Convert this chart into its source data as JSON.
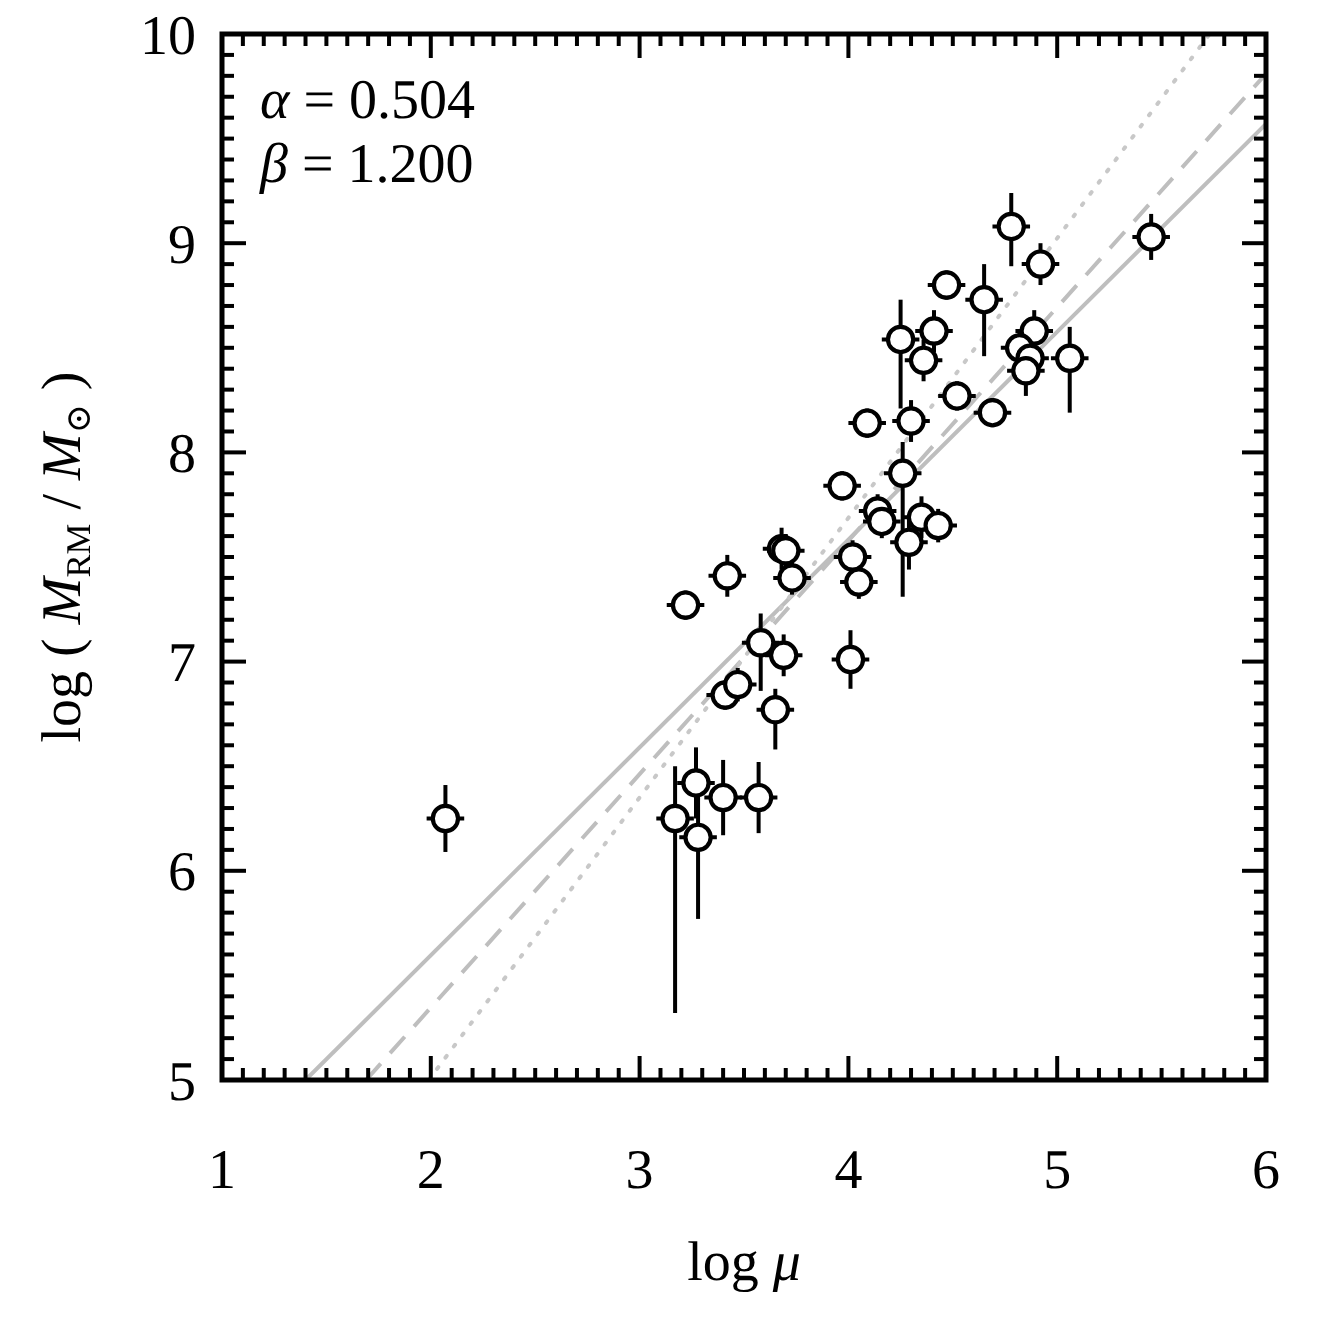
{
  "chart_data": {
    "type": "scatter",
    "xlabel": "log μ",
    "ylabel": "log ( M$_{RM}$ / M$_{⊙}$ )",
    "annotations": [
      "α = 0.504",
      "β = 1.200"
    ],
    "xlim": [
      1,
      6
    ],
    "ylim": [
      5,
      10
    ],
    "xticks": [
      1,
      {
        "value": 1.1,
        "label": null
      },
      {
        "value": 1.2,
        "label": null
      },
      {
        "value": 1.3,
        "label": null
      },
      {
        "value": 1.4,
        "label": null
      },
      {
        "value": 1.5,
        "label": null
      },
      {
        "value": 1.6,
        "label": null
      },
      {
        "value": 1.7,
        "label": null
      },
      {
        "value": 1.8,
        "label": null
      },
      {
        "value": 1.9,
        "label": null
      },
      2,
      {
        "value": 2.1,
        "label": null
      },
      {
        "value": 2.2,
        "label": null
      },
      {
        "value": 2.3,
        "label": null
      },
      {
        "value": 2.4,
        "label": null
      },
      {
        "value": 2.5,
        "label": null
      },
      {
        "value": 2.6,
        "label": null
      },
      {
        "value": 2.7,
        "label": null
      },
      {
        "value": 2.8,
        "label": null
      },
      {
        "value": 2.9,
        "label": null
      },
      3,
      {
        "value": 3.1,
        "label": null
      },
      {
        "value": 3.2,
        "label": null
      },
      {
        "value": 3.3,
        "label": null
      },
      {
        "value": 3.4,
        "label": null
      },
      {
        "value": 3.5,
        "label": null
      },
      {
        "value": 3.6,
        "label": null
      },
      {
        "value": 3.7,
        "label": null
      },
      {
        "value": 3.8,
        "label": null
      },
      {
        "value": 3.9,
        "label": null
      },
      4,
      {
        "value": 4.1,
        "label": null
      },
      {
        "value": 4.2,
        "label": null
      },
      {
        "value": 4.3,
        "label": null
      },
      {
        "value": 4.4,
        "label": null
      },
      {
        "value": 4.5,
        "label": null
      },
      {
        "value": 4.6,
        "label": null
      },
      {
        "value": 4.7,
        "label": null
      },
      {
        "value": 4.8,
        "label": null
      },
      {
        "value": 4.9,
        "label": null
      },
      5,
      {
        "value": 5.1,
        "label": null
      },
      {
        "value": 5.2,
        "label": null
      },
      {
        "value": 5.3,
        "label": null
      },
      {
        "value": 5.4,
        "label": null
      },
      {
        "value": 5.5,
        "label": null
      },
      {
        "value": 5.6,
        "label": null
      },
      {
        "value": 5.7,
        "label": null
      },
      {
        "value": 5.8,
        "label": null
      },
      {
        "value": 5.9,
        "label": null
      },
      6
    ],
    "yticks": [
      5,
      {
        "value": 5.1,
        "label": null
      },
      {
        "value": 5.2,
        "label": null
      },
      {
        "value": 5.3,
        "label": null
      },
      {
        "value": 5.4,
        "label": null
      },
      {
        "value": 5.5,
        "label": null
      },
      {
        "value": 5.6,
        "label": null
      },
      {
        "value": 5.7,
        "label": null
      },
      {
        "value": 5.8,
        "label": null
      },
      {
        "value": 5.9,
        "label": null
      },
      6,
      {
        "value": 6.1,
        "label": null
      },
      {
        "value": 6.2,
        "label": null
      },
      {
        "value": 6.3,
        "label": null
      },
      {
        "value": 6.4,
        "label": null
      },
      {
        "value": 6.5,
        "label": null
      },
      {
        "value": 6.6,
        "label": null
      },
      {
        "value": 6.7,
        "label": null
      },
      {
        "value": 6.8,
        "label": null
      },
      {
        "value": 6.9,
        "label": null
      },
      7,
      {
        "value": 7.1,
        "label": null
      },
      {
        "value": 7.2,
        "label": null
      },
      {
        "value": 7.3,
        "label": null
      },
      {
        "value": 7.4,
        "label": null
      },
      {
        "value": 7.5,
        "label": null
      },
      {
        "value": 7.6,
        "label": null
      },
      {
        "value": 7.7,
        "label": null
      },
      {
        "value": 7.8,
        "label": null
      },
      {
        "value": 7.9,
        "label": null
      },
      8,
      {
        "value": 8.1,
        "label": null
      },
      {
        "value": 8.2,
        "label": null
      },
      {
        "value": 8.3,
        "label": null
      },
      {
        "value": 8.4,
        "label": null
      },
      {
        "value": 8.5,
        "label": null
      },
      {
        "value": 8.6,
        "label": null
      },
      {
        "value": 8.7,
        "label": null
      },
      {
        "value": 8.8,
        "label": null
      },
      {
        "value": 8.9,
        "label": null
      },
      9,
      {
        "value": 9.1,
        "label": null
      },
      {
        "value": 9.2,
        "label": null
      },
      {
        "value": 9.3,
        "label": null
      },
      {
        "value": 9.4,
        "label": null
      },
      {
        "value": 9.5,
        "label": null
      },
      {
        "value": 9.6,
        "label": null
      },
      {
        "value": 9.7,
        "label": null
      },
      {
        "value": 9.8,
        "label": null
      },
      {
        "value": 9.9,
        "label": null
      },
      10
    ],
    "series": [
      {
        "type": "line",
        "color": "#bebebe",
        "line_style": "solid",
        "x": [
          1.4,
          6
        ],
        "values": [
          5,
          9.57
        ]
      },
      {
        "type": "line",
        "color": "#bebebe",
        "line_style": "dashed",
        "x": [
          1.69,
          6
        ],
        "values": [
          5,
          9.81
        ]
      },
      {
        "type": "line",
        "color": "#c8c8c8",
        "line_style": "dotted",
        "x": [
          1.99,
          5.73
        ],
        "values": [
          5,
          10
        ]
      },
      {
        "color": "#000000",
        "marker": "circle",
        "x": [
          2.07,
          3.17,
          3.27,
          3.28,
          3.4,
          3.57,
          3.22,
          3.42,
          3.41,
          3.47,
          3.58,
          3.65,
          3.69,
          3.68,
          3.7,
          3.73,
          4.01,
          4.02,
          4.05,
          3.97,
          4.14,
          4.16,
          4.26,
          4.29,
          4.35,
          4.43,
          4.09,
          4.3,
          4.52,
          4.69,
          4.25,
          4.36,
          4.41,
          4.47,
          4.65,
          4.78,
          4.92,
          4.89,
          4.82,
          4.87,
          4.85,
          5.06,
          5.45
        ],
        "values": [
          6.25,
          6.25,
          6.42,
          6.16,
          6.35,
          6.35,
          7.27,
          7.41,
          6.84,
          6.89,
          7.09,
          6.77,
          7.03,
          7.54,
          7.53,
          7.4,
          7.01,
          7.5,
          7.38,
          7.84,
          7.72,
          7.67,
          7.9,
          7.57,
          7.69,
          7.65,
          8.14,
          8.15,
          8.27,
          8.19,
          8.54,
          8.44,
          8.58,
          8.8,
          8.73,
          9.08,
          8.9,
          8.58,
          8.5,
          8.45,
          8.39,
          8.45,
          9.03
        ],
        "errors": [
          0.16,
          [
            5.32,
            6.5
          ],
          0.17,
          [
            5.77,
            6.36
          ],
          0.18,
          0.17,
          0.07,
          0.1,
          0.07,
          0.08,
          [
            6.86,
            7.23
          ],
          [
            6.58,
            6.87
          ],
          0.1,
          0.1,
          0.08,
          0.08,
          0.14,
          0.08,
          0.08,
          0.07,
          0.08,
          0.08,
          [
            7.31,
            8.05
          ],
          0.13,
          0.1,
          0.08,
          0.07,
          0.1,
          0.07,
          0.07,
          [
            8.21,
            8.73
          ],
          0.1,
          0.1,
          0.07,
          [
            8.46,
            8.9
          ],
          [
            8.89,
            9.24
          ],
          0.1,
          0.1,
          0.08,
          0.08,
          0.12,
          [
            8.19,
            8.6
          ],
          0.11
        ],
        "xerrors": [
          0.09,
          0.09,
          0.09,
          0.09,
          0.09,
          0.09,
          0.09,
          0.09,
          0.09,
          0.09,
          0.09,
          0.09,
          0.09,
          0.09,
          0.09,
          0.09,
          0.09,
          0.09,
          0.09,
          0.09,
          0.09,
          0.09,
          0.09,
          0.09,
          0.09,
          0.09,
          0.09,
          0.09,
          0.09,
          0.09,
          0.09,
          0.09,
          0.09,
          0.09,
          0.09,
          0.09,
          0.09,
          0.09,
          0.09,
          0.09,
          0.09,
          0.09,
          0.09
        ]
      }
    ]
  }
}
